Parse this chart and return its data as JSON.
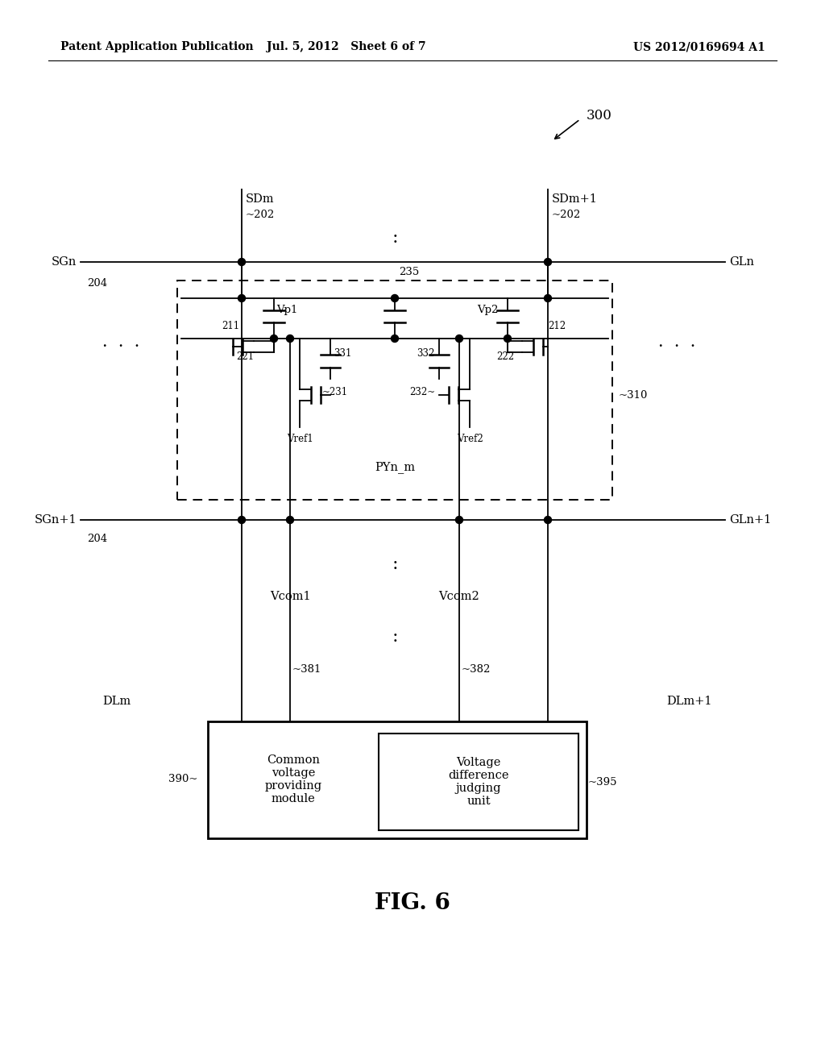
{
  "bg_color": "#ffffff",
  "header_left": "Patent Application Publication",
  "header_mid": "Jul. 5, 2012   Sheet 6 of 7",
  "header_right": "US 2012/0169694 A1",
  "fig_label": "FIG. 6",
  "ref_300": "300",
  "label_202": "~202",
  "label_204": "204",
  "label_SDm": "SDm",
  "label_SDm1": "SDm+1",
  "label_SGn": "SGn",
  "label_SGn1": "SGn+1",
  "label_GLn": "GLn",
  "label_GLn1": "GLn+1",
  "label_Vp1": "Vp1",
  "label_Vp2": "Vp2",
  "label_235": "235",
  "label_211": "211",
  "label_212": "212",
  "label_221": "221",
  "label_222": "222",
  "label_231": "~231",
  "label_232": "232~",
  "label_331": "331",
  "label_332": "332",
  "label_Vref1": "Vref1",
  "label_Vref2": "Vref2",
  "label_PYnm": "PYn_m",
  "label_310": "~310",
  "label_Vcom1": "Vcom1",
  "label_Vcom2": "Vcom2",
  "label_381": "~381",
  "label_382": "~382",
  "label_DLm": "DLm",
  "label_DLm1": "DLm+1",
  "label_390": "390~",
  "label_395": "~395",
  "label_cvpm": "Common\nvoltage\nproviding\nmodule",
  "label_vdju": "Voltage\ndifference\njudging\nunit"
}
